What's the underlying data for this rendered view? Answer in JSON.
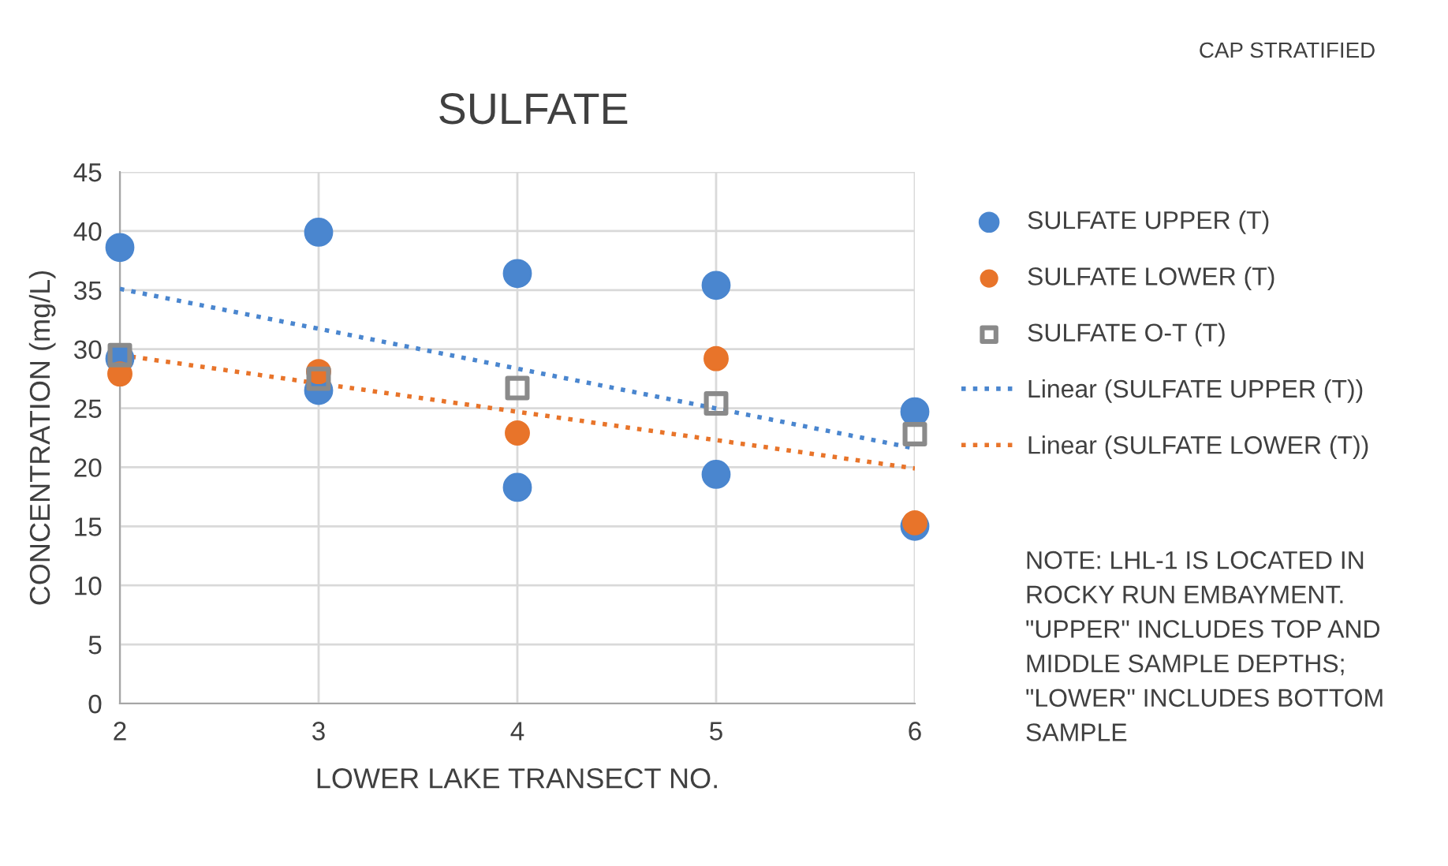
{
  "chart_data": {
    "type": "scatter",
    "title": "SULFATE",
    "xlabel": "LOWER LAKE TRANSECT NO.",
    "ylabel": "CONCENTRATION (mg/L)",
    "xlim": [
      2,
      6
    ],
    "xticks": [
      2,
      3,
      4,
      5,
      6
    ],
    "ylim": [
      0,
      45
    ],
    "yticks": [
      0,
      5,
      10,
      15,
      20,
      25,
      30,
      35,
      40,
      45
    ],
    "grid": true,
    "legend": "right",
    "series": [
      {
        "name": "SULFATE UPPER (T)",
        "color": "#4a86cf",
        "marker": "circle",
        "x": [
          2,
          2,
          3,
          3,
          4,
          4,
          5,
          5,
          6,
          6
        ],
        "values": [
          38.6,
          29.2,
          39.9,
          26.5,
          36.4,
          18.3,
          35.4,
          19.4,
          24.7,
          15.0
        ]
      },
      {
        "name": "SULFATE LOWER (T)",
        "color": "#e8742a",
        "marker": "circle",
        "x": [
          2,
          3,
          4,
          5,
          6
        ],
        "values": [
          27.9,
          28.1,
          22.9,
          29.2,
          15.3
        ]
      },
      {
        "name": "SULFATE O-T (T)",
        "color": "#8a8a8a",
        "marker": "square",
        "x": [
          2,
          3,
          4,
          5,
          6
        ],
        "values": [
          29.5,
          27.5,
          26.7,
          25.4,
          22.8
        ]
      },
      {
        "name": "Linear (SULFATE UPPER (T))",
        "type": "line",
        "color": "#4a86cf",
        "marker": "none",
        "line_style": "dotted",
        "x": [
          2,
          6
        ],
        "values": [
          35.1,
          21.6
        ]
      },
      {
        "name": "Linear (SULFATE LOWER (T))",
        "type": "line",
        "color": "#e8742a",
        "marker": "none",
        "line_style": "dotted",
        "x": [
          2,
          6
        ],
        "values": [
          29.5,
          19.9
        ]
      }
    ],
    "annotations": [
      "CAP STRATIFIED",
      "NOTE: LHL-1 IS LOCATED IN ROCKY RUN EMBAYMENT. \"UPPER\" INCLUDES TOP AND MIDDLE SAMPLE DEPTHS; \"LOWER\" INCLUDES BOTTOM SAMPLE"
    ]
  }
}
